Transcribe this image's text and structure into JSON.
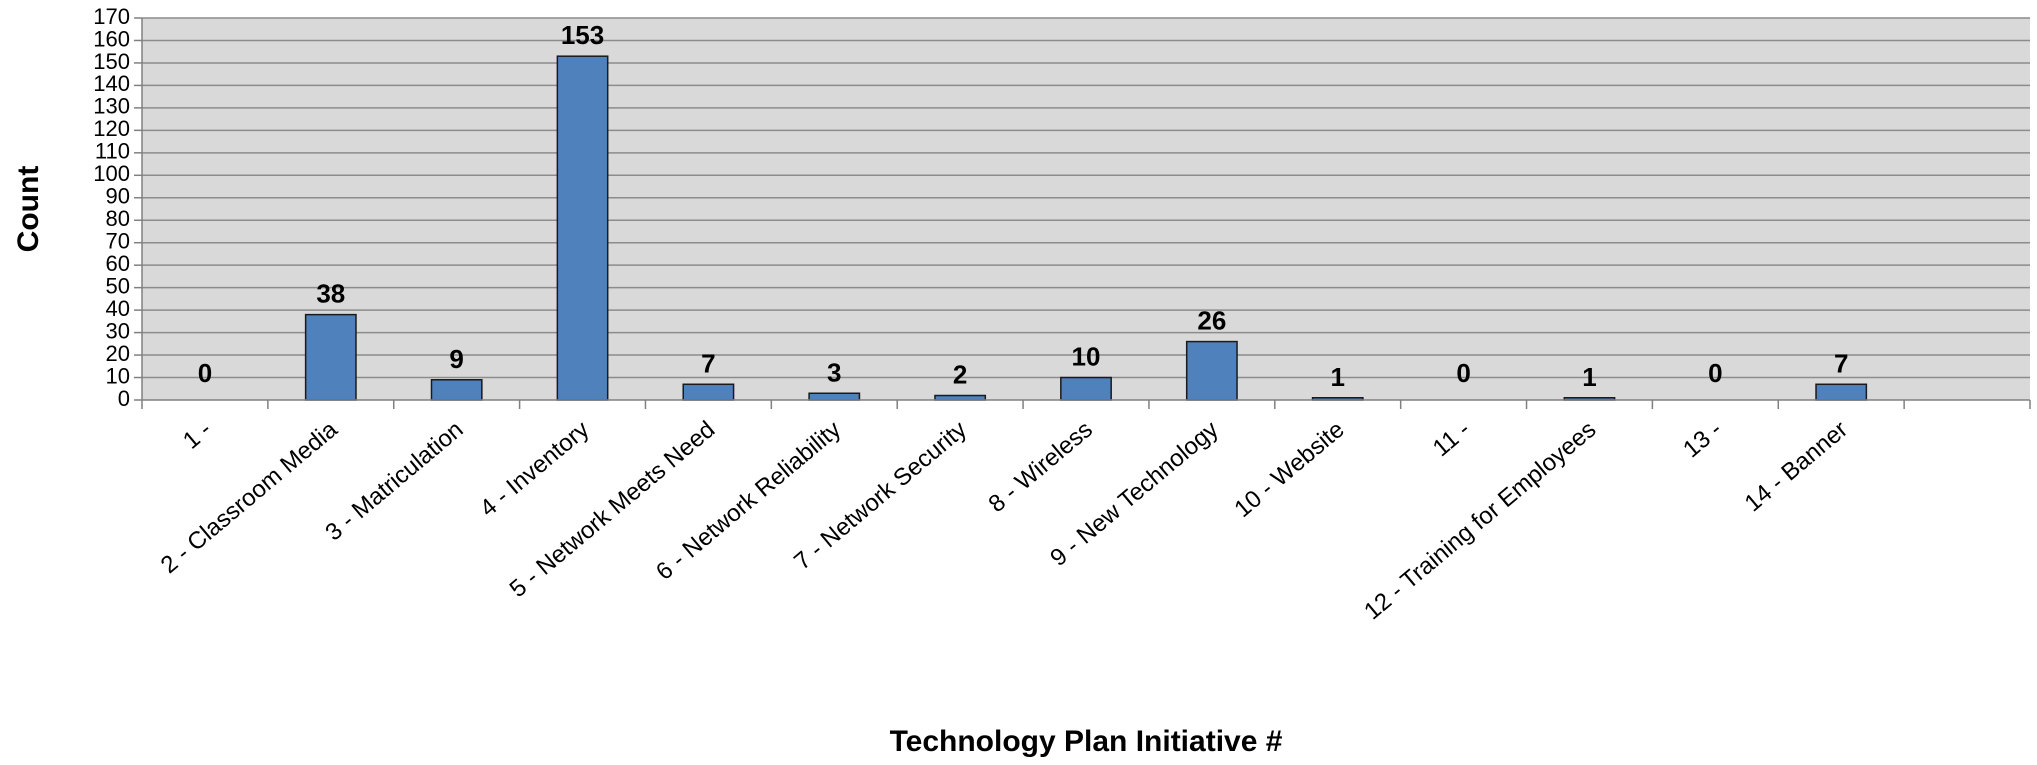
{
  "chart_data": {
    "type": "bar",
    "title": "",
    "xlabel": "Technology Plan Initiative #",
    "ylabel": "Count",
    "ylim": [
      0,
      170
    ],
    "y_ticks": [
      0,
      10,
      20,
      30,
      40,
      50,
      60,
      70,
      80,
      90,
      100,
      110,
      120,
      130,
      140,
      150,
      160,
      170
    ],
    "grid": true,
    "legend": "none",
    "categories": [
      "1 -",
      "2 - Classroom Media",
      "3 - Matriculation",
      "4 - Inventory",
      "5 - Network Meets Need",
      "6 - Network Reliability",
      "7 - Network Security",
      "8 - Wireless",
      "9 - New Technology",
      "10 - Website",
      "11 -",
      "12 - Training for Employees",
      "13 -",
      "14 - Banner"
    ],
    "values": [
      0,
      38,
      9,
      153,
      7,
      3,
      2,
      10,
      26,
      1,
      0,
      1,
      0,
      7
    ],
    "colors": {
      "bar": "#4f81bd",
      "bar_outline": "#1a1a1a",
      "plot_background": "#d9d9d9",
      "gridline": "#8c8c8c"
    }
  }
}
